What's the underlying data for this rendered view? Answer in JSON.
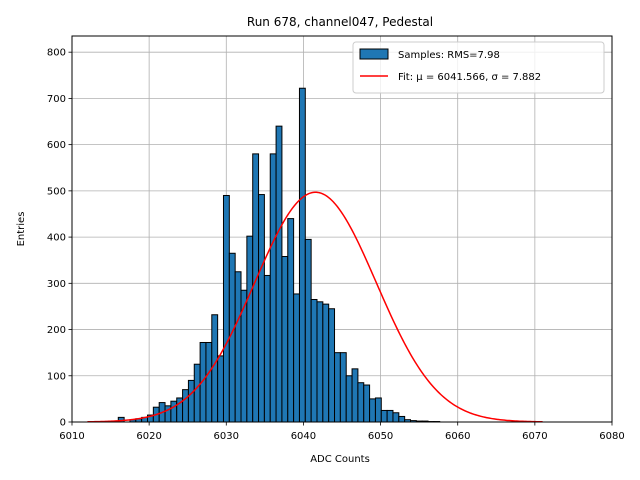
{
  "chart_data": {
    "type": "bar",
    "title": "Run 678, channel047, Pedestal",
    "xlabel": "ADC Counts",
    "ylabel": "Entries",
    "xlim": [
      6010,
      6080
    ],
    "ylim": [
      0,
      835
    ],
    "xticks": [
      6010,
      6020,
      6030,
      6040,
      6050,
      6060,
      6070,
      6080
    ],
    "yticks": [
      0,
      100,
      200,
      300,
      400,
      500,
      600,
      700,
      800
    ],
    "grid": true,
    "legend_position": "top-right",
    "legend": [
      {
        "label": "Samples: RMS=7.98",
        "kind": "patch"
      },
      {
        "label": "Fit: μ = 6041.566, σ = 7.882",
        "kind": "line"
      }
    ],
    "histogram": {
      "name": "Samples: RMS=7.98",
      "bin_edges_start": 6016,
      "bin_width": 0.7576,
      "values": [
        10,
        0,
        5,
        7,
        10,
        15,
        32,
        42,
        35,
        45,
        52,
        70,
        90,
        125,
        172,
        172,
        232,
        143,
        490,
        365,
        325,
        285,
        402,
        580,
        492,
        317,
        580,
        640,
        358,
        440,
        277,
        722,
        395,
        265,
        260,
        255,
        245,
        150,
        150,
        100,
        115,
        85,
        80,
        50,
        52,
        25,
        25,
        20,
        12,
        5,
        3,
        2,
        2,
        1,
        1,
        0,
        0,
        0,
        0,
        0,
        0,
        0,
        0,
        0,
        0,
        0,
        0,
        0,
        0,
        0,
        0,
        0,
        0,
        0,
        0,
        0,
        0,
        0,
        0,
        0,
        0,
        0,
        0,
        0,
        0,
        0,
        0,
        0,
        0,
        0,
        0,
        0,
        0,
        0,
        0,
        0,
        0,
        0,
        0,
        0,
        0,
        0,
        0,
        0,
        0,
        0,
        0,
        0,
        0,
        0,
        0,
        0,
        0,
        0,
        0,
        0,
        0,
        0,
        0,
        0,
        0,
        0,
        0,
        0,
        0,
        0,
        0,
        0,
        0,
        0,
        0,
        0,
        0,
        0,
        0,
        0,
        0,
        0,
        0,
        0,
        0,
        0,
        0,
        0,
        0,
        0,
        0,
        0,
        0,
        0,
        0,
        0,
        0,
        0,
        0,
        0,
        0,
        0,
        0,
        0,
        0,
        0,
        0,
        0,
        0,
        0,
        0,
        0,
        0,
        0,
        0,
        0,
        0,
        0,
        0,
        0,
        0,
        0,
        0,
        0,
        0,
        0,
        0,
        0,
        0,
        0,
        0,
        0,
        0,
        0,
        0,
        0,
        0,
        0,
        0,
        0,
        0,
        0,
        0,
        0,
        0,
        0
      ],
      "color": "#1f77b4",
      "edgecolor": "#000000"
    },
    "fit": {
      "name": "Fit: μ = 6041.566, σ = 7.882",
      "mu": 6041.566,
      "sigma": 7.882,
      "amplitude": 497,
      "x_range": [
        6012,
        6071
      ],
      "color": "#ff0000"
    }
  }
}
